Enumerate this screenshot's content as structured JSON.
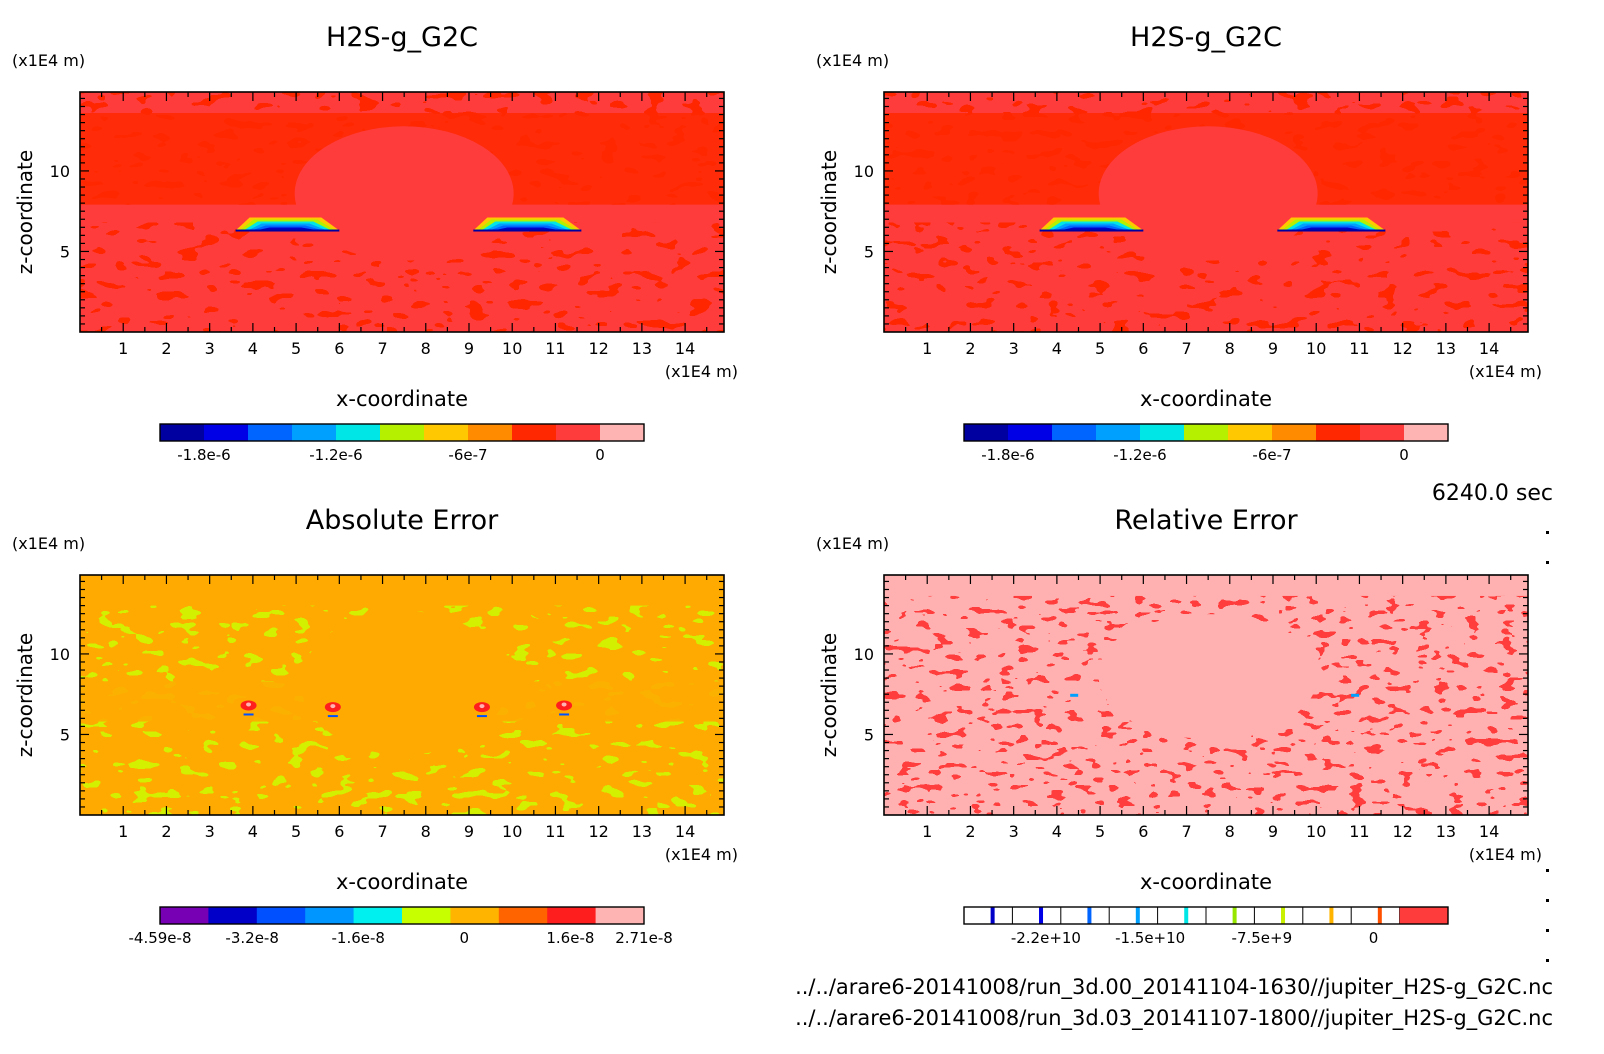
{
  "time_label": "6240.0 sec",
  "file_paths": [
    "../../arare6-20141008/run_3d.00_20141104-1630//jupiter_H2S-g_G2C.nc",
    "../../arare6-20141008/run_3d.03_20141107-1800//jupiter_H2S-g_G2C.nc"
  ],
  "chart_data": [
    {
      "type": "heatmap",
      "title": "H2S-g_G2C",
      "xlabel": "x-coordinate",
      "ylabel": "z-coordinate",
      "x_unit": "(x1E4 m)",
      "y_unit": "(x1E4 m)",
      "xlim": [
        0.0,
        14.9
      ],
      "ylim": [
        0.0,
        14.9
      ],
      "x_ticks": [
        "1",
        "2",
        "3",
        "4",
        "5",
        "6",
        "7",
        "8",
        "9",
        "10",
        "11",
        "12",
        "13",
        "14"
      ],
      "y_ticks": [
        "5",
        "10"
      ],
      "colorbar": {
        "colors": [
          "#0000a0",
          "#0000e6",
          "#0064ff",
          "#00a0ff",
          "#00e6e6",
          "#b4f000",
          "#ffc800",
          "#ff8c00",
          "#ff2800",
          "#ff3c3c",
          "#ffb4b4"
        ],
        "tick_labels": [
          "-1.8e-6",
          "-1.2e-6",
          "-6e-7",
          "0"
        ],
        "tick_values": [
          -1.8e-06,
          -1.2e-06,
          -6e-07,
          0
        ],
        "range": [
          -2e-06,
          2e-07
        ]
      },
      "pattern": "field",
      "colors": {
        "background": "#ff3c3c",
        "patch": "#ff2800"
      },
      "features": [
        {
          "type": "layer",
          "x_range": [
            3.6,
            6.0
          ],
          "z": 6.3
        },
        {
          "type": "layer",
          "x_range": [
            9.1,
            11.6
          ],
          "z": 6.3
        }
      ]
    },
    {
      "type": "heatmap",
      "title": "H2S-g_G2C",
      "xlabel": "x-coordinate",
      "ylabel": "z-coordinate",
      "x_unit": "(x1E4 m)",
      "y_unit": "(x1E4 m)",
      "xlim": [
        0.0,
        14.9
      ],
      "ylim": [
        0.0,
        14.9
      ],
      "x_ticks": [
        "1",
        "2",
        "3",
        "4",
        "5",
        "6",
        "7",
        "8",
        "9",
        "10",
        "11",
        "12",
        "13",
        "14"
      ],
      "y_ticks": [
        "5",
        "10"
      ],
      "colorbar": {
        "colors": [
          "#0000a0",
          "#0000e6",
          "#0064ff",
          "#00a0ff",
          "#00e6e6",
          "#b4f000",
          "#ffc800",
          "#ff8c00",
          "#ff2800",
          "#ff3c3c",
          "#ffb4b4"
        ],
        "tick_labels": [
          "-1.8e-6",
          "-1.2e-6",
          "-6e-7",
          "0"
        ],
        "tick_values": [
          -1.8e-06,
          -1.2e-06,
          -6e-07,
          0
        ],
        "range": [
          -2e-06,
          2e-07
        ]
      },
      "pattern": "field",
      "colors": {
        "background": "#ff3c3c",
        "patch": "#ff2800"
      },
      "features": [
        {
          "type": "layer",
          "x_range": [
            3.6,
            6.0
          ],
          "z": 6.3
        },
        {
          "type": "layer",
          "x_range": [
            9.1,
            11.6
          ],
          "z": 6.3
        }
      ]
    },
    {
      "type": "heatmap",
      "title": "Absolute Error",
      "xlabel": "x-coordinate",
      "ylabel": "z-coordinate",
      "x_unit": "(x1E4 m)",
      "y_unit": "(x1E4 m)",
      "xlim": [
        0.0,
        14.9
      ],
      "ylim": [
        0.0,
        14.9
      ],
      "x_ticks": [
        "1",
        "2",
        "3",
        "4",
        "5",
        "6",
        "7",
        "8",
        "9",
        "10",
        "11",
        "12",
        "13",
        "14"
      ],
      "y_ticks": [
        "5",
        "10"
      ],
      "colorbar": {
        "colors": [
          "#7800b4",
          "#0000c8",
          "#0050ff",
          "#0096ff",
          "#00f0f0",
          "#c8ff00",
          "#ffb400",
          "#ff6400",
          "#ff1e1e",
          "#ffb4b4"
        ],
        "tick_labels": [
          "-4.59e-8",
          "-3.2e-8",
          "-1.6e-8",
          "0",
          "1.6e-8",
          "2.71e-8"
        ],
        "tick_values": [
          -4.59e-08,
          -3.2e-08,
          -1.6e-08,
          0,
          1.6e-08,
          2.71e-08
        ],
        "range": [
          -4.59e-08,
          2.71e-08
        ]
      },
      "pattern": "field",
      "colors": {
        "background": "#ffaa00",
        "patch": "#d2f000"
      },
      "features": [
        {
          "type": "spot",
          "x": 3.9,
          "z": 6.8
        },
        {
          "type": "spot",
          "x": 5.85,
          "z": 6.7
        },
        {
          "type": "spot",
          "x": 9.3,
          "z": 6.7
        },
        {
          "type": "spot",
          "x": 11.2,
          "z": 6.8
        }
      ]
    },
    {
      "type": "heatmap",
      "title": "Relative Error",
      "xlabel": "x-coordinate",
      "ylabel": "z-coordinate",
      "x_unit": "(x1E4 m)",
      "y_unit": "(x1E4 m)",
      "xlim": [
        0.0,
        14.9
      ],
      "ylim": [
        0.0,
        14.9
      ],
      "x_ticks": [
        "1",
        "2",
        "3",
        "4",
        "5",
        "6",
        "7",
        "8",
        "9",
        "10",
        "11",
        "12",
        "13",
        "14"
      ],
      "y_ticks": [
        "5",
        "10"
      ],
      "colorbar": {
        "style": "lines",
        "colors": [
          "#0000c8",
          "#0000e6",
          "#0064ff",
          "#00a0ff",
          "#00e6e6",
          "#96e600",
          "#c8f000",
          "#ffb400",
          "#ff5000",
          "#ff3c3c"
        ],
        "tick_labels": [
          "-2.2e+10",
          "-1.5e+10",
          "-7.5e+9",
          "0"
        ],
        "tick_values": [
          -22000000000.0,
          -15000000000.0,
          -7500000000.0,
          0
        ],
        "range": [
          -27500000000.0,
          5000000000.0
        ]
      },
      "pattern": "speckle",
      "colors": {
        "background": "#ffb0b0",
        "patch": "#ff3c3c"
      },
      "features": [
        {
          "type": "mark",
          "x": 4.4,
          "z": 7.4
        },
        {
          "type": "mark",
          "x": 10.9,
          "z": 7.4
        }
      ]
    }
  ]
}
